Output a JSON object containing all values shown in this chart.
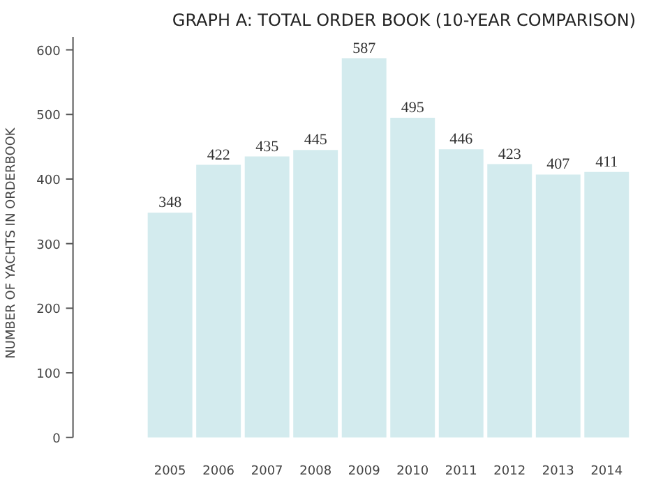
{
  "chart_data": {
    "type": "bar",
    "title": "GRAPH A: TOTAL ORDER BOOK (10-YEAR COMPARISON)",
    "ylabel": "NUMBER OF YACHTS IN ORDERBOOK",
    "categories": [
      "2005",
      "2006",
      "2007",
      "2008",
      "2009",
      "2010",
      "2011",
      "2012",
      "2013",
      "2014"
    ],
    "values": [
      348,
      422,
      435,
      445,
      587,
      495,
      446,
      423,
      407,
      411
    ],
    "color": "#d3ebee",
    "ylim": [
      0,
      620
    ],
    "yticks": [
      0,
      100,
      200,
      300,
      400,
      500,
      600
    ],
    "grid": false,
    "data_labels": true
  }
}
